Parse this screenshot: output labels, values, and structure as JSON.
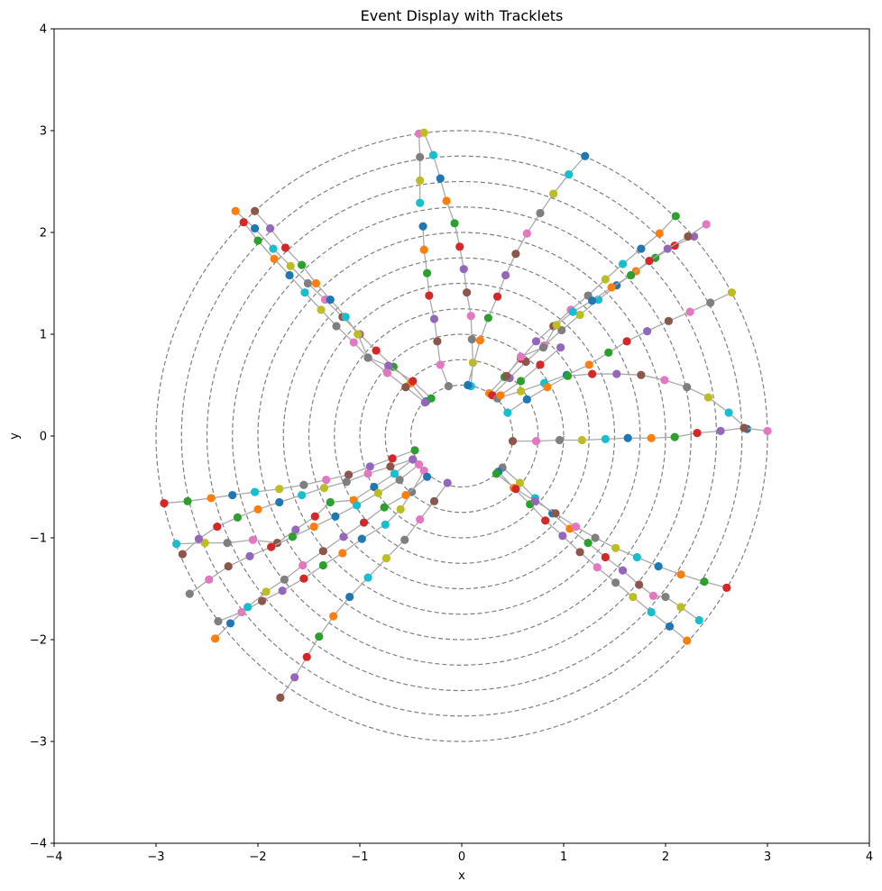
{
  "chart_data": {
    "type": "scatter",
    "title": "Event Display with Tracklets",
    "xlabel": "x",
    "ylabel": "y",
    "xlim": [
      -4,
      4
    ],
    "ylim": [
      -4,
      4
    ],
    "xticks": [
      "−4",
      "−3",
      "−2",
      "−1",
      "0",
      "1",
      "2",
      "3",
      "4"
    ],
    "yticks": [
      "−4",
      "−3",
      "−2",
      "−1",
      "0",
      "1",
      "2",
      "3",
      "4"
    ],
    "grid": false,
    "legend": "none",
    "detector_layer_radii": [
      0.5,
      0.75,
      1.0,
      1.25,
      1.5,
      1.75,
      2.0,
      2.25,
      2.5,
      2.75,
      3.0
    ],
    "layer_style": {
      "color": "#808080",
      "dash": "dashed"
    },
    "track_line_color": "#aaaaaa",
    "point_colors": [
      "#1f77b4",
      "#ff7f0e",
      "#2ca02c",
      "#d62728",
      "#9467bd",
      "#8c564b",
      "#e377c2",
      "#7f7f7f",
      "#bcbd22",
      "#17becf"
    ],
    "tracks": [
      {
        "points": [
          [
            -0.35,
            0.34
          ],
          [
            -0.5,
            0.52
          ],
          [
            -0.67,
            0.68
          ],
          [
            -0.84,
            0.84
          ],
          [
            -1.0,
            1.0
          ],
          [
            -1.17,
            1.17
          ],
          [
            -1.34,
            1.34
          ],
          [
            -1.51,
            1.5
          ],
          [
            -1.68,
            1.67
          ],
          [
            -1.85,
            1.84
          ],
          [
            -2.03,
            2.04
          ],
          [
            -2.22,
            2.21
          ]
        ]
      },
      {
        "points": [
          [
            -0.3,
            0.37
          ],
          [
            -0.48,
            0.54
          ],
          [
            -0.72,
            0.69
          ],
          [
            -0.92,
            0.77
          ],
          [
            -1.06,
            0.92
          ],
          [
            -1.23,
            1.08
          ],
          [
            -1.38,
            1.24
          ],
          [
            -1.54,
            1.41
          ],
          [
            -1.69,
            1.58
          ],
          [
            -1.84,
            1.74
          ],
          [
            -2.0,
            1.92
          ],
          [
            -2.14,
            2.1
          ]
        ]
      },
      {
        "points": [
          [
            -0.36,
            0.33
          ],
          [
            -0.55,
            0.48
          ],
          [
            -0.73,
            0.62
          ],
          [
            -0.92,
            0.77
          ],
          [
            -1.02,
            1.0
          ],
          [
            -1.14,
            1.17
          ],
          [
            -1.29,
            1.34
          ],
          [
            -1.43,
            1.5
          ],
          [
            -1.57,
            1.68
          ],
          [
            -1.73,
            1.85
          ],
          [
            -1.88,
            2.04
          ],
          [
            -2.03,
            2.21
          ]
        ]
      },
      {
        "points": [
          [
            -0.42,
            2.97
          ],
          [
            -0.41,
            2.74
          ],
          [
            -0.41,
            2.51
          ],
          [
            -0.41,
            2.29
          ]
        ]
      },
      {
        "points": [
          [
            -0.38,
            2.06
          ],
          [
            -0.37,
            1.83
          ],
          [
            -0.34,
            1.6
          ],
          [
            -0.32,
            1.38
          ],
          [
            -0.27,
            1.15
          ],
          [
            -0.24,
            0.93
          ],
          [
            -0.21,
            0.7
          ],
          [
            -0.13,
            0.49
          ]
        ]
      },
      {
        "points": [
          [
            -0.37,
            2.98
          ],
          [
            -0.28,
            2.76
          ],
          [
            -0.21,
            2.53
          ],
          [
            -0.15,
            2.31
          ],
          [
            -0.07,
            2.09
          ],
          [
            -0.02,
            1.86
          ],
          [
            0.02,
            1.64
          ],
          [
            0.05,
            1.41
          ],
          [
            0.09,
            1.18
          ],
          [
            0.1,
            0.95
          ],
          [
            0.11,
            0.72
          ],
          [
            0.09,
            0.49
          ]
        ]
      },
      {
        "points": [
          [
            0.06,
            0.5
          ],
          [
            0.18,
            0.94
          ],
          [
            0.26,
            1.16
          ],
          [
            0.35,
            1.37
          ],
          [
            0.43,
            1.58
          ],
          [
            0.53,
            1.79
          ],
          [
            0.64,
            1.99
          ],
          [
            0.77,
            2.19
          ],
          [
            0.9,
            2.38
          ],
          [
            1.05,
            2.57
          ],
          [
            1.21,
            2.75
          ]
        ]
      },
      {
        "points": [
          [
            0.27,
            0.42
          ],
          [
            0.42,
            0.58
          ],
          [
            0.58,
            0.76
          ],
          [
            0.73,
            0.93
          ],
          [
            0.9,
            1.08
          ],
          [
            1.07,
            1.24
          ],
          [
            1.24,
            1.38
          ],
          [
            1.41,
            1.54
          ],
          [
            1.58,
            1.69
          ],
          [
            1.76,
            1.84
          ],
          [
            1.94,
            1.99
          ],
          [
            2.1,
            2.16
          ]
        ]
      },
      {
        "points": [
          [
            0.3,
            0.4
          ],
          [
            0.47,
            0.57
          ],
          [
            0.63,
            0.73
          ],
          [
            0.81,
            0.89
          ],
          [
            0.98,
            1.04
          ],
          [
            1.16,
            1.19
          ],
          [
            1.34,
            1.34
          ],
          [
            1.52,
            1.48
          ],
          [
            1.71,
            1.62
          ],
          [
            1.9,
            1.75
          ],
          [
            2.09,
            1.87
          ],
          [
            2.28,
            1.96
          ]
        ]
      },
      {
        "points": [
          [
            0.44,
            0.59
          ],
          [
            0.58,
            0.78
          ],
          [
            0.8,
            0.87
          ],
          [
            0.93,
            1.09
          ],
          [
            1.09,
            1.22
          ],
          [
            1.28,
            1.33
          ],
          [
            1.47,
            1.46
          ],
          [
            1.66,
            1.58
          ],
          [
            1.84,
            1.72
          ],
          [
            2.02,
            1.84
          ],
          [
            2.22,
            1.96
          ],
          [
            2.4,
            2.08
          ]
        ]
      },
      {
        "points": [
          [
            0.35,
            0.37
          ],
          [
            0.58,
            0.44
          ],
          [
            0.81,
            0.52
          ],
          [
            1.03,
            0.6
          ],
          [
            1.25,
            0.7
          ],
          [
            1.44,
            0.82
          ],
          [
            1.62,
            0.93
          ],
          [
            1.82,
            1.03
          ],
          [
            2.03,
            1.13
          ],
          [
            2.24,
            1.22
          ],
          [
            2.44,
            1.31
          ],
          [
            2.65,
            1.41
          ]
        ]
      },
      {
        "points": [
          [
            0.45,
            0.23
          ],
          [
            0.64,
            0.36
          ],
          [
            0.84,
            0.48
          ],
          [
            1.04,
            0.59
          ],
          [
            1.28,
            0.61
          ],
          [
            1.52,
            0.61
          ],
          [
            1.76,
            0.6
          ],
          [
            1.99,
            0.55
          ],
          [
            2.21,
            0.48
          ],
          [
            2.42,
            0.38
          ],
          [
            2.62,
            0.23
          ],
          [
            2.8,
            0.07
          ]
        ]
      },
      {
        "points": [
          [
            0.38,
            0.4
          ],
          [
            0.58,
            0.54
          ],
          [
            0.77,
            0.7
          ],
          [
            0.97,
            0.87
          ]
        ]
      },
      {
        "points": [
          [
            0.5,
            -0.05
          ],
          [
            0.73,
            -0.05
          ],
          [
            0.96,
            -0.04
          ],
          [
            1.18,
            -0.04
          ],
          [
            1.41,
            -0.03
          ],
          [
            1.63,
            -0.02
          ],
          [
            1.86,
            -0.02
          ],
          [
            2.09,
            -0.01
          ],
          [
            2.31,
            0.03
          ],
          [
            2.54,
            0.05
          ],
          [
            2.77,
            0.08
          ],
          [
            3.0,
            0.05
          ]
        ]
      },
      {
        "points": [
          [
            0.4,
            -0.31
          ],
          [
            0.57,
            -0.46
          ],
          [
            0.72,
            -0.61
          ],
          [
            0.89,
            -0.76
          ],
          [
            1.06,
            -0.91
          ],
          [
            1.24,
            -1.05
          ],
          [
            1.41,
            -1.19
          ],
          [
            1.58,
            -1.32
          ],
          [
            1.74,
            -1.46
          ],
          [
            1.88,
            -1.57
          ],
          [
            2.0,
            -1.58
          ],
          [
            2.15,
            -1.68
          ],
          [
            2.33,
            -1.81
          ]
        ]
      },
      {
        "points": [
          [
            0.36,
            -0.35
          ],
          [
            0.51,
            -0.51
          ],
          [
            0.67,
            -0.67
          ],
          [
            0.82,
            -0.83
          ],
          [
            0.99,
            -0.98
          ],
          [
            1.16,
            -1.14
          ],
          [
            1.33,
            -1.29
          ],
          [
            1.51,
            -1.44
          ],
          [
            1.68,
            -1.58
          ],
          [
            1.86,
            -1.73
          ],
          [
            2.04,
            -1.87
          ],
          [
            2.21,
            -2.01
          ]
        ]
      },
      {
        "points": [
          [
            0.34,
            -0.37
          ],
          [
            0.53,
            -0.52
          ],
          [
            0.72,
            -0.64
          ],
          [
            0.92,
            -0.76
          ],
          [
            1.12,
            -0.89
          ],
          [
            1.31,
            -1.0
          ],
          [
            1.51,
            -1.1
          ],
          [
            1.72,
            -1.19
          ],
          [
            1.93,
            -1.28
          ],
          [
            2.15,
            -1.36
          ],
          [
            2.38,
            -1.43
          ],
          [
            2.6,
            -1.49
          ]
        ]
      },
      {
        "points": [
          [
            -0.14,
            -0.46
          ],
          [
            -0.27,
            -0.64
          ],
          [
            -0.41,
            -0.82
          ],
          [
            -0.56,
            -1.02
          ],
          [
            -0.74,
            -1.2
          ],
          [
            -0.92,
            -1.39
          ],
          [
            -1.1,
            -1.58
          ],
          [
            -1.26,
            -1.77
          ],
          [
            -1.4,
            -1.97
          ],
          [
            -1.52,
            -2.17
          ],
          [
            -1.64,
            -2.37
          ],
          [
            -1.78,
            -2.57
          ]
        ]
      },
      {
        "points": [
          [
            -0.37,
            -0.34
          ],
          [
            -0.49,
            -0.55
          ],
          [
            -0.6,
            -0.72
          ],
          [
            -0.75,
            -0.87
          ],
          [
            -0.98,
            -1.01
          ],
          [
            -1.17,
            -1.15
          ],
          [
            -1.36,
            -1.27
          ],
          [
            -1.55,
            -1.4
          ],
          [
            -1.76,
            -1.52
          ],
          [
            -1.96,
            -1.62
          ],
          [
            -2.16,
            -1.73
          ],
          [
            -2.39,
            -1.82
          ]
        ]
      },
      {
        "points": [
          [
            -0.48,
            -0.23
          ],
          [
            -0.66,
            -0.37
          ],
          [
            -0.86,
            -0.5
          ],
          [
            -1.06,
            -0.63
          ],
          [
            -1.29,
            -0.65
          ],
          [
            -1.44,
            -0.79
          ],
          [
            -1.63,
            -0.92
          ],
          [
            -1.81,
            -1.05
          ],
          [
            -2.05,
            -1.02
          ],
          [
            -2.3,
            -1.05
          ],
          [
            -2.52,
            -1.05
          ],
          [
            -2.8,
            -1.06
          ]
        ]
      },
      {
        "points": [
          [
            -0.34,
            -0.4
          ],
          [
            -0.55,
            -0.58
          ],
          [
            -0.76,
            -0.7
          ],
          [
            -0.96,
            -0.85
          ],
          [
            -1.16,
            -0.99
          ],
          [
            -1.36,
            -1.13
          ],
          [
            -1.56,
            -1.27
          ],
          [
            -1.74,
            -1.41
          ],
          [
            -1.92,
            -1.53
          ],
          [
            -2.1,
            -1.68
          ],
          [
            -2.27,
            -1.84
          ],
          [
            -2.42,
            -1.99
          ]
        ]
      },
      {
        "points": [
          [
            -0.46,
            -0.14
          ],
          [
            -0.68,
            -0.22
          ],
          [
            -0.9,
            -0.3
          ],
          [
            -1.11,
            -0.38
          ],
          [
            -1.33,
            -0.43
          ],
          [
            -1.55,
            -0.48
          ],
          [
            -1.79,
            -0.52
          ],
          [
            -2.03,
            -0.55
          ],
          [
            -2.25,
            -0.58
          ],
          [
            -2.46,
            -0.61
          ],
          [
            -2.69,
            -0.64
          ],
          [
            -2.92,
            -0.66
          ]
        ]
      },
      {
        "points": [
          [
            -0.48,
            -0.23
          ],
          [
            -0.7,
            -0.3
          ],
          [
            -0.92,
            -0.37
          ],
          [
            -1.13,
            -0.45
          ],
          [
            -1.35,
            -0.51
          ],
          [
            -1.57,
            -0.58
          ],
          [
            -1.79,
            -0.65
          ],
          [
            -2.0,
            -0.72
          ],
          [
            -2.2,
            -0.8
          ],
          [
            -2.4,
            -0.89
          ],
          [
            -2.58,
            -1.01
          ],
          [
            -2.74,
            -1.16
          ]
        ]
      },
      {
        "points": [
          [
            -0.42,
            -0.28
          ],
          [
            -0.61,
            -0.43
          ],
          [
            -0.82,
            -0.56
          ],
          [
            -1.03,
            -0.68
          ],
          [
            -1.24,
            -0.79
          ],
          [
            -1.45,
            -0.89
          ],
          [
            -1.66,
            -0.99
          ],
          [
            -1.87,
            -1.09
          ],
          [
            -2.08,
            -1.18
          ],
          [
            -2.29,
            -1.28
          ],
          [
            -2.48,
            -1.41
          ],
          [
            -2.67,
            -1.55
          ]
        ]
      }
    ]
  }
}
